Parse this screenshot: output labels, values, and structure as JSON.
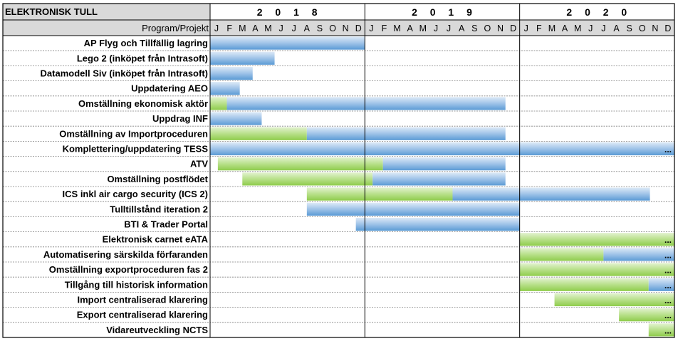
{
  "chart_data": {
    "type": "gantt",
    "title": "ELEKTRONISK TULL",
    "label_header": "Program/Projekt",
    "years": [
      "2 0 1 8",
      "2 0 1 9",
      "2 0 2 0"
    ],
    "months": [
      "J",
      "F",
      "M",
      "A",
      "M",
      "J",
      "J",
      "A",
      "S",
      "O",
      "N",
      "D"
    ],
    "colors": {
      "green": "#92d050",
      "blue": "#5b9bd5",
      "header": "#d9d9d9"
    },
    "continues_marker": "...",
    "projects": [
      {
        "name": "AP Flyg och Tillfällig lagring",
        "segments": [
          {
            "start": 0,
            "end": 12,
            "color": "blue"
          }
        ],
        "continues": false
      },
      {
        "name": "Lego 2 (inköpet från Intrasoft)",
        "segments": [
          {
            "start": 0,
            "end": 5,
            "color": "blue"
          }
        ],
        "continues": false
      },
      {
        "name": "Datamodell Siv (inköpet från Intrasoft)",
        "segments": [
          {
            "start": 0,
            "end": 3.3,
            "color": "blue"
          }
        ],
        "continues": false
      },
      {
        "name": "Uppdatering AEO",
        "segments": [
          {
            "start": 0,
            "end": 2.3,
            "color": "blue"
          }
        ],
        "continues": false
      },
      {
        "name": "Omställning ekonomisk aktör",
        "segments": [
          {
            "start": 0,
            "end": 1.3,
            "color": "green"
          },
          {
            "start": 1.3,
            "end": 22.9,
            "color": "blue"
          }
        ],
        "continues": false
      },
      {
        "name": "Uppdrag INF",
        "segments": [
          {
            "start": 0,
            "end": 4,
            "color": "blue"
          }
        ],
        "continues": false
      },
      {
        "name": "Omställning av Importproceduren",
        "segments": [
          {
            "start": 0,
            "end": 7.5,
            "color": "green"
          },
          {
            "start": 7.5,
            "end": 22.9,
            "color": "blue"
          }
        ],
        "continues": false
      },
      {
        "name": "Komplettering/uppdatering TESS",
        "segments": [
          {
            "start": 0,
            "end": 36,
            "color": "blue"
          }
        ],
        "continues": true
      },
      {
        "name": "ATV",
        "segments": [
          {
            "start": 0.6,
            "end": 13.4,
            "color": "green"
          },
          {
            "start": 13.4,
            "end": 22.9,
            "color": "blue"
          }
        ],
        "continues": false
      },
      {
        "name": "Omställning postflödet",
        "segments": [
          {
            "start": 2.5,
            "end": 12.6,
            "color": "green"
          },
          {
            "start": 12.6,
            "end": 22.9,
            "color": "blue"
          }
        ],
        "continues": false
      },
      {
        "name": "ICS inkl air cargo security (ICS 2)",
        "segments": [
          {
            "start": 7.5,
            "end": 18.8,
            "color": "green"
          },
          {
            "start": 18.8,
            "end": 34.1,
            "color": "blue"
          }
        ],
        "continues": false
      },
      {
        "name": "Tulltillstånd iteration 2",
        "segments": [
          {
            "start": 7.5,
            "end": 24,
            "color": "blue"
          }
        ],
        "continues": false
      },
      {
        "name": "BTI & Trader Portal",
        "segments": [
          {
            "start": 11.3,
            "end": 24,
            "color": "blue"
          }
        ],
        "continues": false
      },
      {
        "name": "Elektronisk carnet eATA",
        "segments": [
          {
            "start": 24,
            "end": 36,
            "color": "green"
          }
        ],
        "continues": true
      },
      {
        "name": "Automatisering särskilda förfaranden",
        "segments": [
          {
            "start": 24,
            "end": 30.5,
            "color": "green"
          },
          {
            "start": 30.5,
            "end": 36,
            "color": "blue"
          }
        ],
        "continues": true
      },
      {
        "name": "Omställning exportproceduren fas 2",
        "segments": [
          {
            "start": 24,
            "end": 36,
            "color": "green"
          }
        ],
        "continues": true
      },
      {
        "name": "Tillgång till historisk information",
        "segments": [
          {
            "start": 24,
            "end": 34,
            "color": "green"
          },
          {
            "start": 34,
            "end": 36,
            "color": "blue"
          }
        ],
        "continues": true
      },
      {
        "name": "Import centraliserad klarering",
        "segments": [
          {
            "start": 26.7,
            "end": 36,
            "color": "green"
          }
        ],
        "continues": true
      },
      {
        "name": "Export centraliserad klarering",
        "segments": [
          {
            "start": 31.7,
            "end": 36,
            "color": "green"
          }
        ],
        "continues": true
      },
      {
        "name": "Vidareutveckling NCTS",
        "segments": [
          {
            "start": 34,
            "end": 36,
            "color": "green"
          }
        ],
        "continues": true
      }
    ]
  }
}
